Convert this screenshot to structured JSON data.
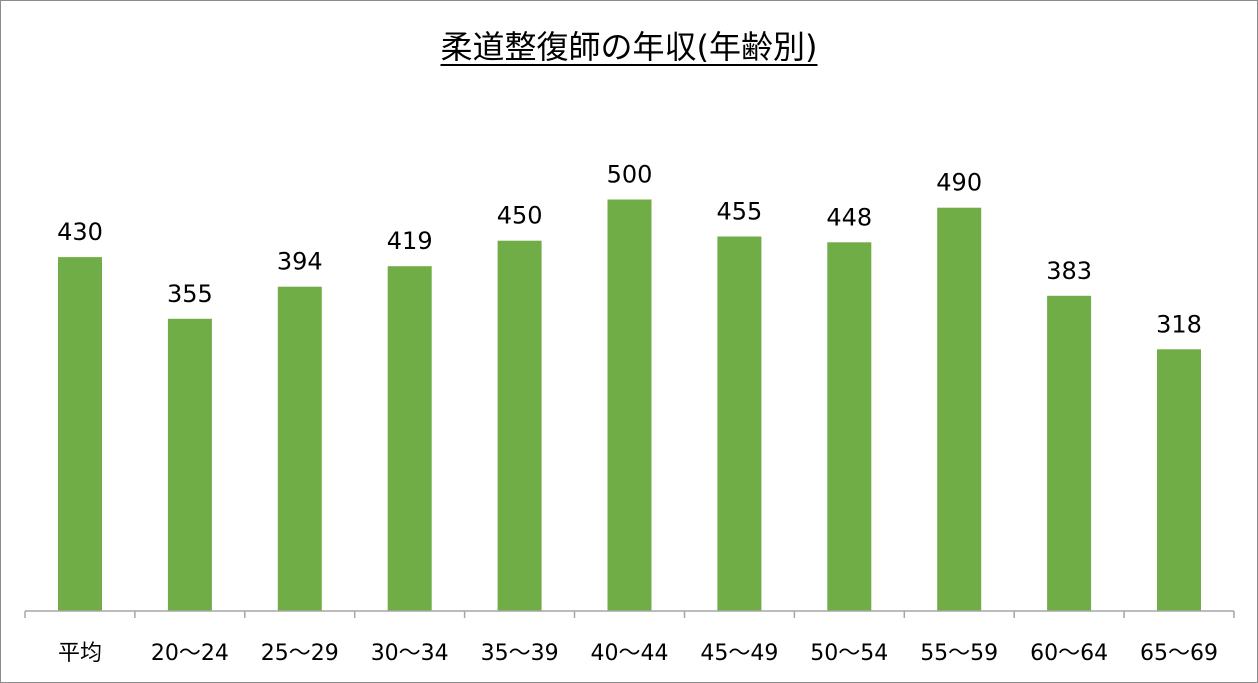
{
  "chart_data": {
    "type": "bar",
    "title": "柔道整復師の年収(年齢別)",
    "xlabel": "",
    "ylabel": "",
    "categories": [
      "平均",
      "20〜24",
      "25〜29",
      "30〜34",
      "35〜39",
      "40〜44",
      "45〜49",
      "50〜54",
      "55〜59",
      "60〜64",
      "65〜69"
    ],
    "values": [
      430,
      355,
      394,
      419,
      450,
      500,
      455,
      448,
      490,
      383,
      318
    ],
    "ylim": [
      0,
      550
    ],
    "grid": false,
    "legend": "none",
    "colors": {
      "bar": "#70ad47",
      "axis": "#a6a6a6"
    }
  }
}
